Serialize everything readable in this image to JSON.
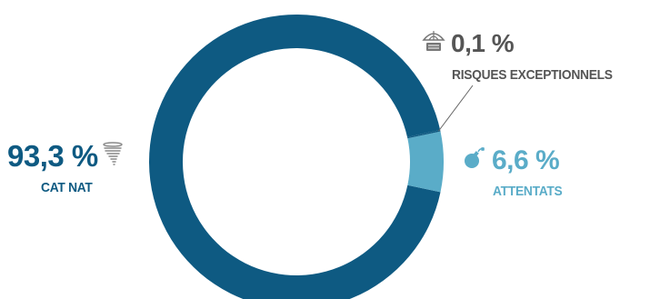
{
  "chart_data": {
    "type": "pie",
    "title": "",
    "slices": [
      {
        "label": "CAT NAT",
        "value": 93.3,
        "display": "93,3 %",
        "color": "#0e5a82",
        "icon": "tornado-icon"
      },
      {
        "label": "ATTENTATS",
        "value": 6.6,
        "display": "6,6 %",
        "color": "#5aacc8",
        "icon": "bomb-icon"
      },
      {
        "label": "RISQUES EXCEPTIONNELS",
        "value": 0.1,
        "display": "0,1 %",
        "color": "#0e5a82",
        "icon": "umbrella-icon"
      }
    ],
    "donut": true,
    "legend": "none"
  },
  "colors": {
    "dark_blue": "#0e5a82",
    "light_blue": "#5aacc8",
    "grey_text": "#555555",
    "leader_line": "#666666"
  }
}
